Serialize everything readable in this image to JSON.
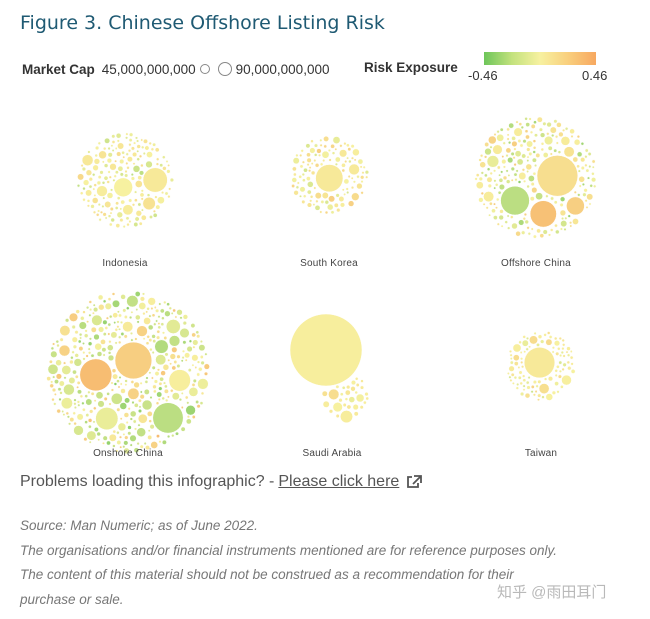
{
  "title": "Figure 3. Chinese Offshore Listing Risk",
  "legend": {
    "market_cap_label": "Market Cap",
    "market_cap_min": "45,000,000,000",
    "market_cap_max": "90,000,000,000",
    "risk_label": "Risk Exposure",
    "risk_min": "-0.46",
    "risk_max": "0.46"
  },
  "colors": {
    "low": "#6dc55a",
    "mid": "#f7f1a0",
    "high": "#f7a860"
  },
  "chart_data": {
    "type": "bubble-pack",
    "panels": [
      {
        "name": "Indonesia",
        "layout": "cluster",
        "bias": 0.0,
        "spread": 0.22,
        "big": [
          {
            "r": 0.26,
            "v": 0.05
          },
          {
            "r": 0.2,
            "v": 0.0
          }
        ]
      },
      {
        "name": "South Korea",
        "layout": "cluster",
        "bias": 0.05,
        "spread": 0.25,
        "big": [
          {
            "r": 0.36,
            "v": 0.05
          },
          {
            "r": 0.38,
            "v": 0.02
          }
        ]
      },
      {
        "name": "Offshore China",
        "layout": "cluster",
        "bias": -0.02,
        "spread": 0.38,
        "big": [
          {
            "r": 0.34,
            "v": 0.12
          },
          {
            "r": 0.24,
            "v": -0.2
          },
          {
            "r": 0.22,
            "v": 0.3
          }
        ]
      },
      {
        "name": "Onshore China",
        "layout": "cluster",
        "bias": -0.03,
        "spread": 0.4,
        "big": [
          {
            "r": 0.23,
            "v": 0.22
          },
          {
            "r": 0.19,
            "v": -0.2
          },
          {
            "r": 0.2,
            "v": 0.33
          }
        ]
      },
      {
        "name": "Saudi Arabia",
        "layout": "one-big",
        "bias": 0.03,
        "spread": 0.12,
        "big": [
          {
            "r": 0.62,
            "v": 0.02
          }
        ]
      },
      {
        "name": "Taiwan",
        "layout": "cluster",
        "bias": 0.02,
        "spread": 0.2,
        "big": [
          {
            "r": 0.45,
            "v": 0.05
          }
        ]
      }
    ]
  },
  "problems": {
    "text": "Problems loading this infographic? -",
    "link": "Please click here"
  },
  "source_lines": [
    "Source: Man Numeric; as of June 2022.",
    "The organisations and/or financial instruments mentioned are for reference purposes only.",
    "The content of this material should not be construed as a recommendation for their",
    "purchase or sale."
  ],
  "watermark": "知乎 @雨田耳门"
}
